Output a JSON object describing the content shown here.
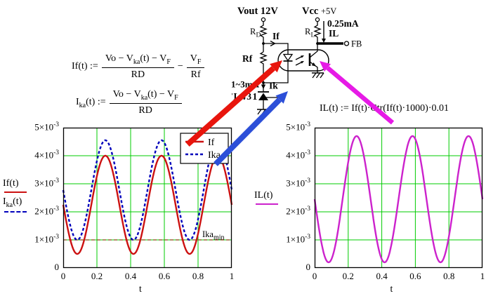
{
  "formulas": {
    "if": {
      "lhs": [
        {
          "t": "If(t) := "
        }
      ],
      "num1": [
        {
          "t": "Vo − V"
        },
        {
          "sub": "ka"
        },
        {
          "t": "(t) − V"
        },
        {
          "sub": "F"
        }
      ],
      "den1": [
        {
          "t": "RD"
        }
      ],
      "op": [
        {
          "t": "−"
        }
      ],
      "num2": [
        {
          "t": "V"
        },
        {
          "sub": "F"
        }
      ],
      "den2": [
        {
          "t": "Rf"
        }
      ]
    },
    "ika": {
      "lhs": [
        {
          "t": "I"
        },
        {
          "sub": "ka"
        },
        {
          "t": "(t) := "
        }
      ],
      "num1": [
        {
          "t": "Vo − V"
        },
        {
          "sub": "ka"
        },
        {
          "t": "(t) − V"
        },
        {
          "sub": "F"
        }
      ],
      "den1": [
        {
          "t": "RD"
        }
      ]
    },
    "il": {
      "text": [
        {
          "t": "IL(t) := If(t)·Ctr(If(t)·1000)·0.01"
        }
      ]
    }
  },
  "circuit": {
    "labels": {
      "vout": "Vout 12V",
      "vcc": "Vcc",
      "vcc_val": "+5V",
      "rd_base": "R",
      "rd_sub": "D",
      "rl_base": "R",
      "rl_sub": "L",
      "if_current": "If",
      "rf": "Rf",
      "il_value": "0.25mA",
      "il_current": "IL",
      "fb": "FB",
      "ik_range": "1~3mA",
      "ik_current": "Ik",
      "tl431": "TL431"
    }
  },
  "chart_data": [
    {
      "type": "line",
      "title": "",
      "xlabel": "t",
      "x_range": [
        0,
        1
      ],
      "x_ticks": [
        0,
        0.2,
        0.4,
        0.6,
        0.8,
        1
      ],
      "y_ticks": [
        0,
        0.001,
        0.002,
        0.003,
        0.004,
        0.005
      ],
      "y_tick_style": {
        "coefficients": [
          0,
          1,
          2,
          3,
          4,
          5
        ],
        "exponent": -3
      },
      "ylim": [
        0,
        0.005
      ],
      "grid": true,
      "grid_color": "#00cc00",
      "legend_position": "top-right",
      "axis_label_lines": [
        {
          "tokens": [
            {
              "t": "If(t)"
            }
          ],
          "color": "#cc1111",
          "style": "solid"
        },
        {
          "tokens": [
            {
              "t": "I"
            },
            {
              "sub": "ka"
            },
            {
              "t": "(t)"
            }
          ],
          "color": "#0000bb",
          "style": "dashed"
        }
      ],
      "series": [
        {
          "name": "If",
          "color": "#cc1111",
          "style": "solid",
          "model": "y(t) = offset + amplitude*sin(2*pi*freq*t + phase)",
          "offset": 0.00225,
          "amplitude": 0.00175,
          "freq": 3,
          "phase_deg": 180,
          "min": 0.0005,
          "max": 0.004
        },
        {
          "name": "Ika",
          "color": "#0000bb",
          "style": "dashed",
          "model": "y(t) = offset + amplitude*sin(2*pi*freq*t + phase)",
          "offset": 0.002775,
          "amplitude": 0.001775,
          "freq": 3,
          "phase_deg": 180,
          "min": 0.001,
          "max": 0.00455
        }
      ],
      "marker_line": {
        "value": 0.001,
        "color": "#8b4513",
        "style": "dashed",
        "label_tokens": [
          {
            "t": "Ika"
          },
          {
            "sub": "min"
          }
        ]
      }
    },
    {
      "type": "line",
      "title": "",
      "xlabel": "t",
      "x_range": [
        0,
        1
      ],
      "x_ticks": [
        0,
        0.2,
        0.4,
        0.6,
        0.8,
        1
      ],
      "y_ticks": [
        0,
        0.001,
        0.002,
        0.003,
        0.004,
        0.005
      ],
      "y_tick_style": {
        "coefficients": [
          0,
          1,
          2,
          3,
          4,
          5
        ],
        "exponent": -3
      },
      "ylim": [
        0,
        0.005
      ],
      "grid": true,
      "grid_color": "#00cc00",
      "axis_label_lines": [
        {
          "tokens": [
            {
              "t": "IL(t)"
            }
          ],
          "color": "#cc22cc",
          "style": "solid"
        }
      ],
      "series": [
        {
          "name": "IL",
          "color": "#cc22cc",
          "style": "solid",
          "model": "y(t) = offset + amplitude*sin(2*pi*freq*t + phase)",
          "offset": 0.00245,
          "amplitude": 0.00225,
          "freq": 3,
          "phase_deg": 180,
          "min": 0.0002,
          "max": 0.0047
        }
      ]
    }
  ],
  "annotations": {
    "arrows": [
      {
        "name": "red-arrow",
        "color": "#e8150d",
        "from": [
          267,
          206
        ],
        "to": [
          402,
          86
        ],
        "width": 8,
        "head_len": 17,
        "head_w": 8
      },
      {
        "name": "blue-arrow",
        "color": "#2c4fd8",
        "from": [
          307,
          234
        ],
        "to": [
          410,
          130
        ],
        "width": 8,
        "head_len": 17,
        "head_w": 8
      },
      {
        "name": "magenta-arrow",
        "color": "#e61ae6",
        "from": [
          559,
          175
        ],
        "to": [
          455,
          87
        ],
        "width": 6.5,
        "head_len": 15,
        "head_w": 7
      }
    ]
  }
}
